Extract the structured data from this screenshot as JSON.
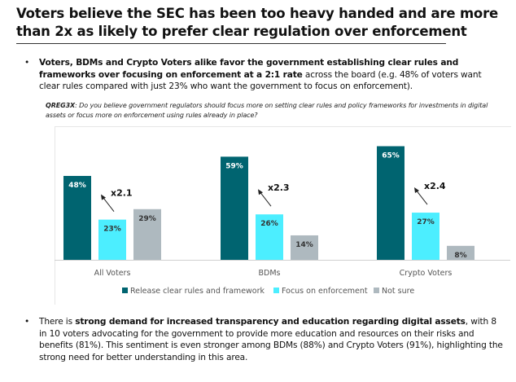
{
  "title": "Voters believe the SEC has been too heavy handed and are more than 2x as likely to prefer clear regulation over enforcement",
  "bullet1": {
    "bold": "Voters, BDMs and Crypto Voters alike favor the government establishing clear rules and frameworks over focusing on enforcement at a 2:1 rate",
    "rest": " across the board (e.g. 48% of voters want clear rules compared with just 23% who want the government to focus on enforcement)."
  },
  "question": {
    "code": "QREG3X",
    "text": ": Do you believe government regulators should focus more on setting clear rules and policy frameworks for investments in digital assets or focus more on enforcement using rules already in place?"
  },
  "bullet2": {
    "pre": "There is ",
    "bold": "strong demand for increased transparency and education regarding digital assets",
    "rest": ", with 8 in 10 voters advocating for the government to provide more education and resources on their risks and benefits (81%). This sentiment is even stronger among BDMs (88%) and Crypto Voters (91%), highlighting the strong need for better understanding in this area."
  },
  "chart_data": {
    "type": "bar",
    "categories": [
      "All Voters",
      "BDMs",
      "Crypto Voters"
    ],
    "series": [
      {
        "name": "Release clear rules and framework",
        "values": [
          48,
          59,
          65
        ],
        "color": "#006470"
      },
      {
        "name": "Focus on enforcement",
        "values": [
          23,
          26,
          27
        ],
        "color": "#4ceeff"
      },
      {
        "name": "Not sure",
        "values": [
          29,
          14,
          8
        ],
        "color": "#aeb9bf"
      }
    ],
    "annotations": [
      "x2.1",
      "x2.3",
      "x2.4"
    ],
    "legend": "bottom",
    "grid": false
  }
}
